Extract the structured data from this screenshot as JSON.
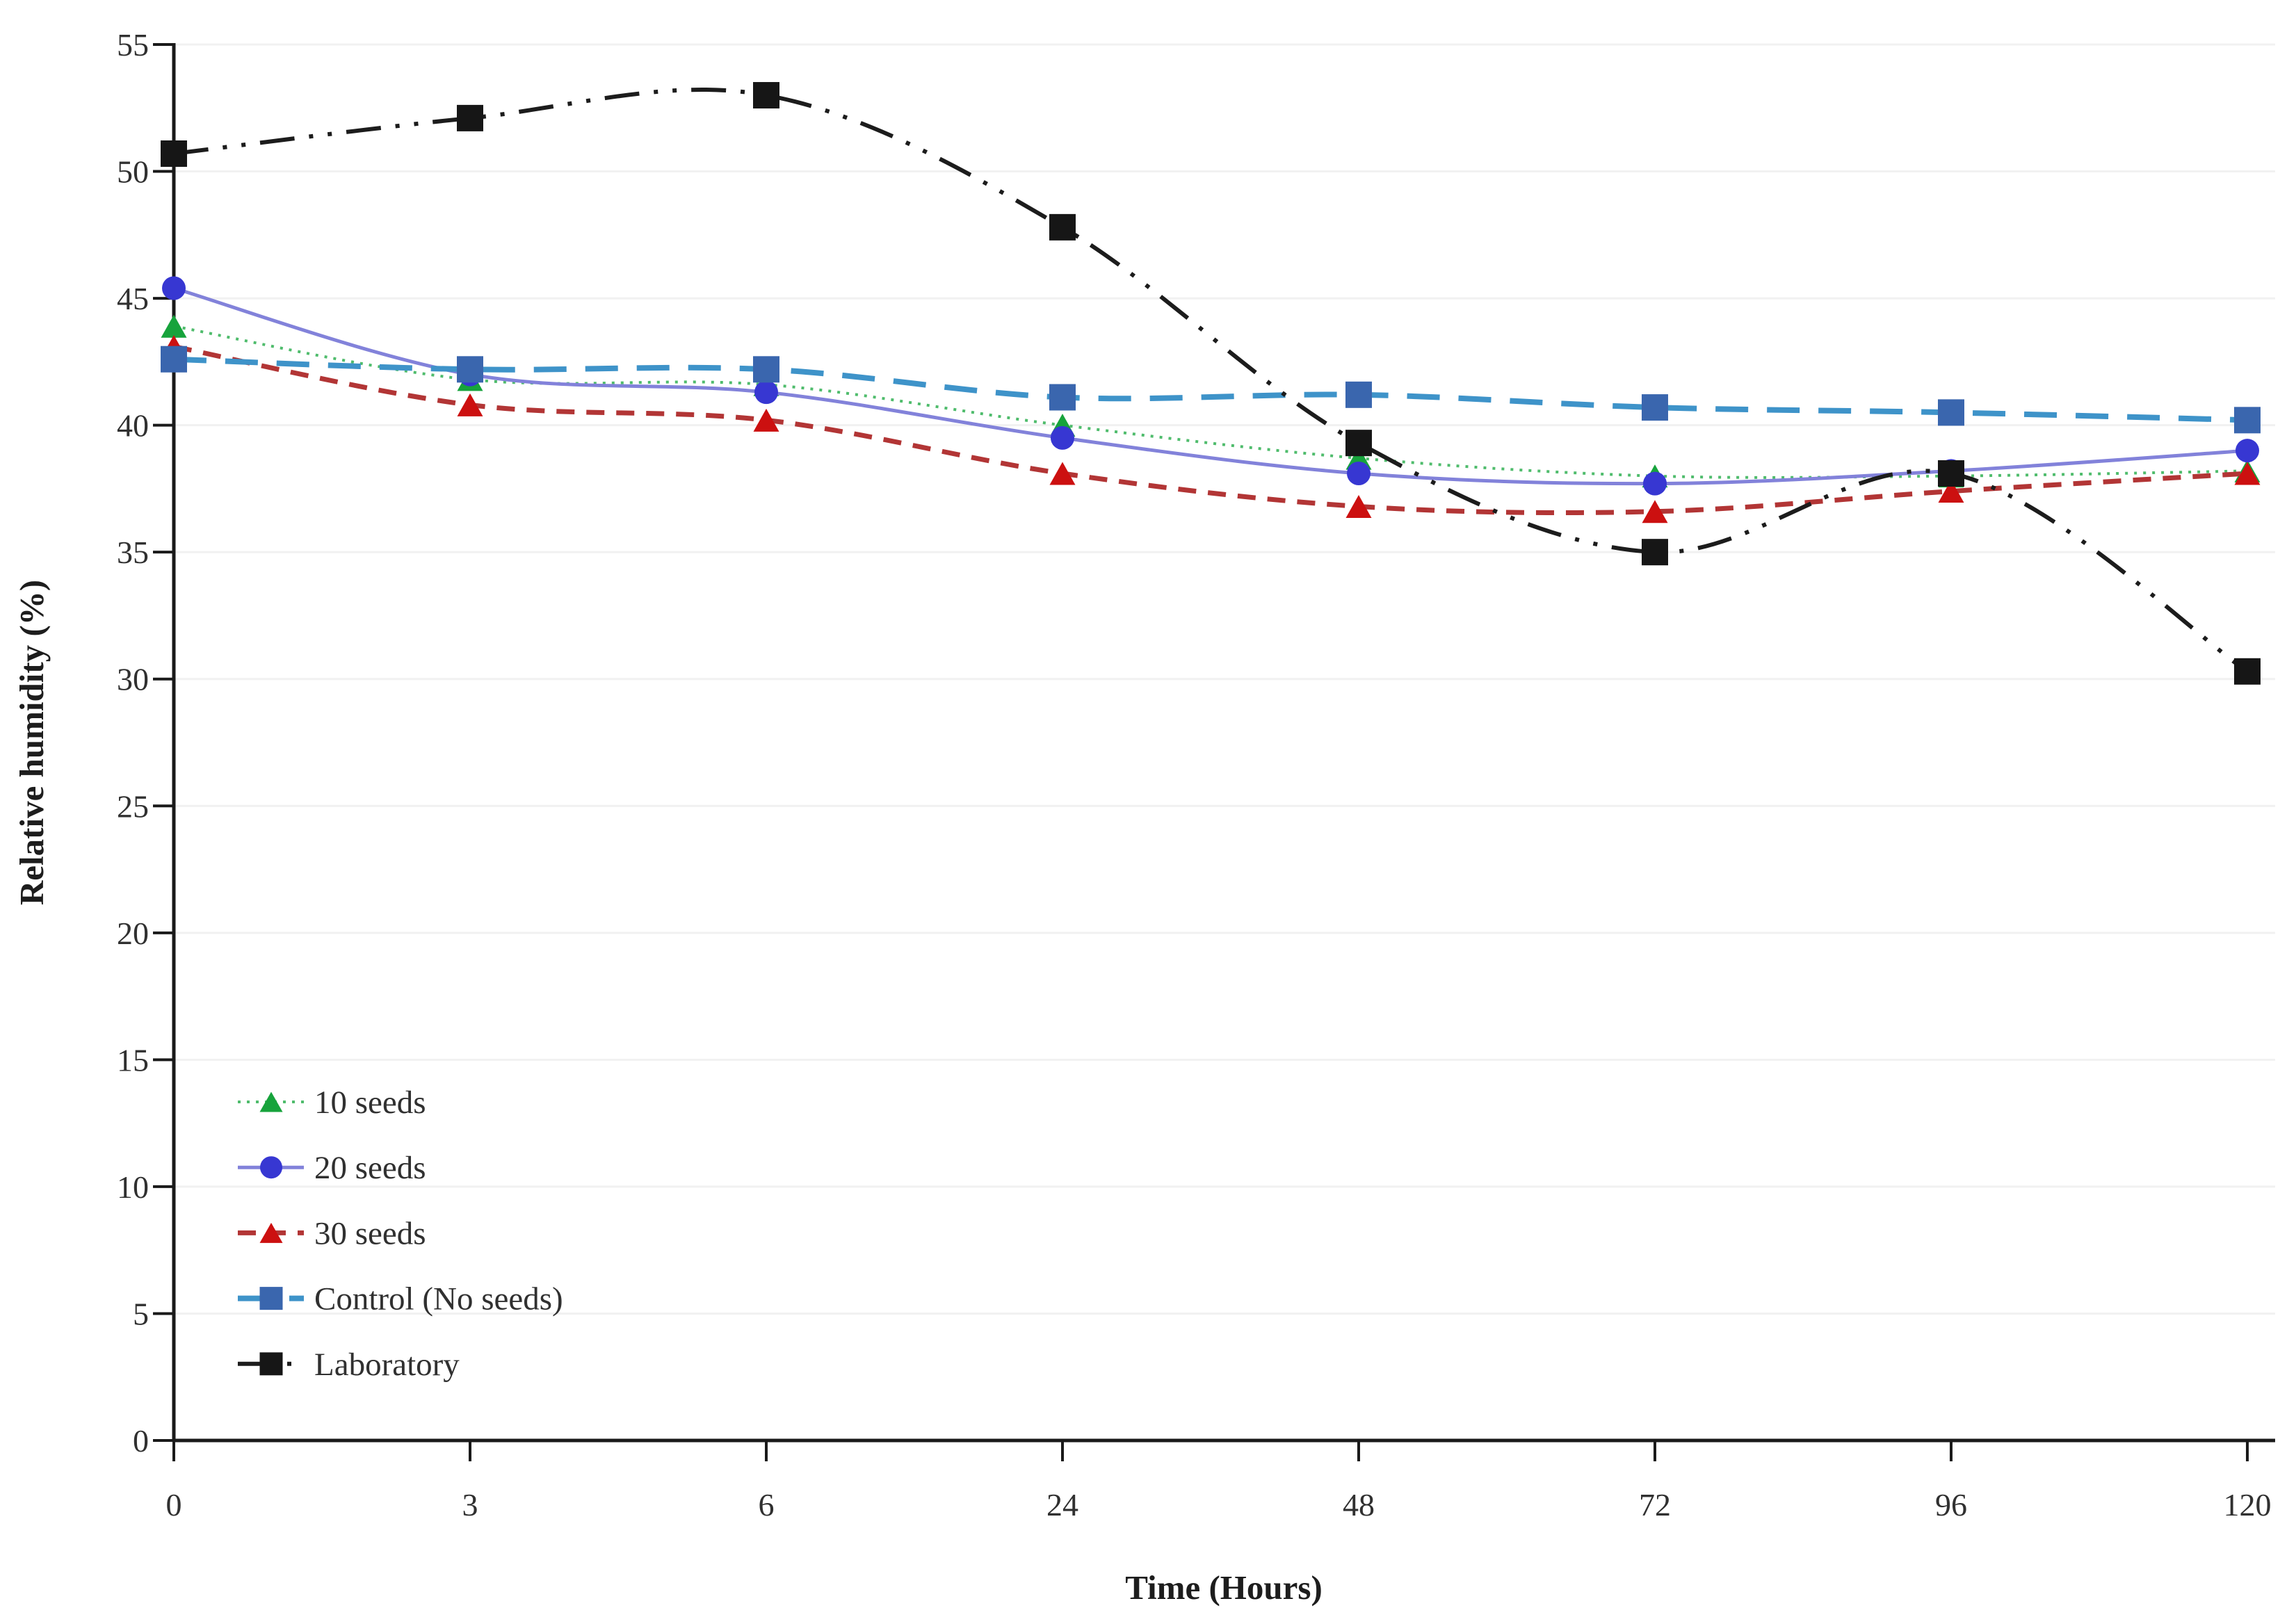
{
  "figure": {
    "background": "#ffffff",
    "grid_color": "#f1f1f1",
    "axis_color": "#1a1a1a",
    "tick_text_color": "#303030"
  },
  "chart_data": {
    "type": "line",
    "title": "",
    "xlabel": "Time (Hours)",
    "ylabel": "Relative humidity (%)",
    "x_categories": [
      "0",
      "3",
      "6",
      "24",
      "48",
      "72",
      "96",
      "120"
    ],
    "y_ticks": [
      0,
      5,
      10,
      15,
      20,
      25,
      30,
      35,
      40,
      45,
      50,
      55
    ],
    "ylim": [
      0,
      55
    ],
    "grid": "horizontal",
    "legend_position": "inside-bottom-left",
    "series": [
      {
        "name": "10 seeds",
        "values": [
          43.9,
          41.8,
          41.6,
          40.0,
          38.7,
          38.0,
          38.0,
          38.2
        ],
        "marker": "triangle",
        "marker_color": "#17a33c",
        "line_color": "#4fbc6c",
        "line_style": "dotted",
        "line_width": 4
      },
      {
        "name": "20 seeds",
        "values": [
          45.4,
          42.0,
          41.3,
          39.5,
          38.1,
          37.7,
          38.2,
          39.0
        ],
        "marker": "circle",
        "marker_color": "#3737d2",
        "line_color": "#8282da",
        "line_style": "solid",
        "line_width": 5
      },
      {
        "name": "30 seeds",
        "values": [
          43.1,
          40.8,
          40.2,
          38.1,
          36.8,
          36.6,
          37.4,
          38.1
        ],
        "marker": "triangle",
        "marker_color": "#cc1010",
        "line_color": "#b23535",
        "line_style": "dashed",
        "line_width": 7
      },
      {
        "name": "Control (No seeds)",
        "values": [
          42.6,
          42.2,
          42.2,
          41.1,
          41.2,
          40.7,
          40.5,
          40.2
        ],
        "marker": "square",
        "marker_color": "#3a66ae",
        "line_color": "#3e93c9",
        "line_style": "long-dash",
        "line_width": 8
      },
      {
        "name": "Laboratory",
        "values": [
          50.7,
          52.1,
          53.0,
          47.8,
          39.3,
          35.0,
          38.1,
          30.3
        ],
        "marker": "square",
        "marker_color": "#161616",
        "line_color": "#1c1c1c",
        "line_style": "dash-dot-dot",
        "line_width": 6
      }
    ]
  }
}
